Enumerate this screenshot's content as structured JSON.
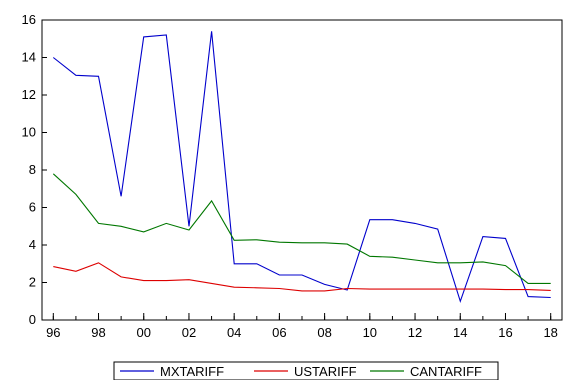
{
  "chart_data": {
    "type": "line",
    "title": "",
    "xlabel": "",
    "ylabel": "",
    "x": [
      1996,
      1997,
      1998,
      1999,
      2000,
      2001,
      2002,
      2003,
      2004,
      2005,
      2006,
      2007,
      2008,
      2009,
      2010,
      2011,
      2012,
      2013,
      2014,
      2015,
      2016,
      2017,
      2018
    ],
    "x_tick_labels": [
      "96",
      "98",
      "00",
      "02",
      "04",
      "06",
      "08",
      "10",
      "12",
      "14",
      "16",
      "18"
    ],
    "x_tick_values": [
      1996,
      1998,
      2000,
      2002,
      2004,
      2006,
      2008,
      2010,
      2012,
      2014,
      2016,
      2018
    ],
    "xlim": [
      1995.5,
      2018.5
    ],
    "ylim": [
      0,
      16
    ],
    "y_ticks": [
      0,
      2,
      4,
      6,
      8,
      10,
      12,
      14,
      16
    ],
    "grid": false,
    "legend_position": "bottom",
    "series": [
      {
        "name": "MXTARIFF",
        "color": "#0000cc",
        "values": [
          14.0,
          13.05,
          13.0,
          6.6,
          15.1,
          15.2,
          5.0,
          15.4,
          3.0,
          3.0,
          2.4,
          2.4,
          1.9,
          1.6,
          5.35,
          5.35,
          5.15,
          4.85,
          1.0,
          4.45,
          4.35,
          1.25,
          1.2
        ]
      },
      {
        "name": "USTARIFF",
        "color": "#dd0000",
        "values": [
          2.85,
          2.6,
          3.05,
          2.3,
          2.1,
          2.1,
          2.15,
          1.95,
          1.75,
          1.72,
          1.68,
          1.55,
          1.55,
          1.68,
          1.65,
          1.65,
          1.65,
          1.65,
          1.65,
          1.65,
          1.62,
          1.62,
          1.58
        ]
      },
      {
        "name": "CANTARIFF",
        "color": "#007700",
        "values": [
          7.8,
          6.7,
          5.15,
          5.0,
          4.7,
          5.15,
          4.8,
          6.35,
          4.25,
          4.28,
          4.15,
          4.12,
          4.12,
          4.05,
          3.4,
          3.35,
          3.2,
          3.05,
          3.05,
          3.1,
          2.9,
          1.95,
          1.95
        ]
      }
    ]
  }
}
